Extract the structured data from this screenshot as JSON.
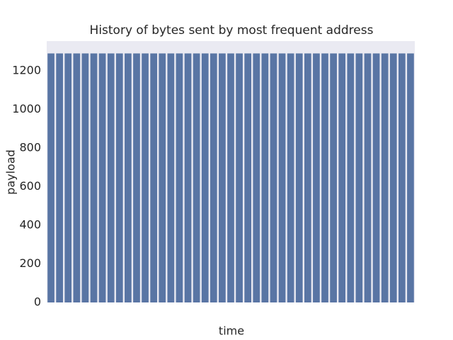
{
  "chart_data": {
    "type": "bar",
    "title": "History of bytes sent by most frequent address",
    "x_label": "time",
    "y_label": "payload",
    "categories": [
      null,
      null,
      null,
      null,
      null,
      null,
      null,
      null,
      null,
      null,
      null,
      null,
      null,
      null,
      null,
      null,
      null,
      null,
      null,
      null,
      null,
      null,
      null,
      null,
      null,
      null,
      null,
      null,
      null,
      null,
      null,
      null,
      null,
      null,
      null,
      null,
      null,
      null,
      null,
      null,
      null,
      null,
      null
    ],
    "values": [
      1290,
      1290,
      1290,
      1290,
      1290,
      1290,
      1290,
      1290,
      1290,
      1290,
      1290,
      1290,
      1290,
      1290,
      1290,
      1290,
      1290,
      1290,
      1290,
      1290,
      1290,
      1290,
      1290,
      1290,
      1290,
      1290,
      1290,
      1290,
      1290,
      1290,
      1290,
      1290,
      1290,
      1290,
      1290,
      1290,
      1290,
      1290,
      1290,
      1290,
      1290,
      1290,
      1290
    ],
    "color": "#5975a4",
    "ylim": [
      0,
      1354
    ],
    "yticks": [
      0,
      200,
      400,
      600,
      800,
      1000,
      1200
    ],
    "grid": false
  }
}
